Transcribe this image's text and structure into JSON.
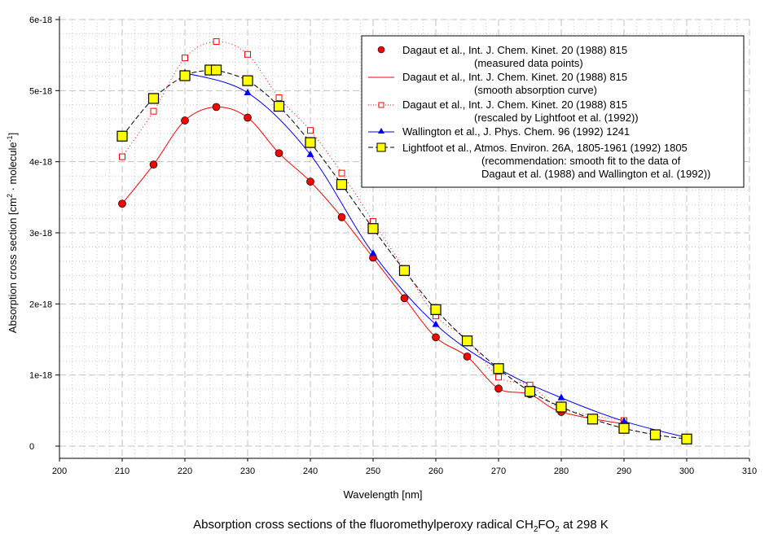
{
  "chart_data": {
    "type": "line",
    "title": {
      "pre": "Absorption cross sections of the fluoromethylperoxy radical CH",
      "sub1": "2",
      "mid": "FO",
      "sub2": "2",
      "post": " at 298 K"
    },
    "xlabel": "Wavelength [nm]",
    "ylabel": {
      "pre": "Absorption cross section [cm",
      "sup1": "2",
      "mid": " · molecule",
      "sup2": "-1",
      "post": "]"
    },
    "xlim": [
      200,
      310
    ],
    "ylim": [
      -1.7e-19,
      6e-18
    ],
    "grid": true,
    "legend_position": "top-right",
    "x_ticks": [
      "200",
      "210",
      "220",
      "230",
      "240",
      "250",
      "260",
      "270",
      "280",
      "290",
      "300",
      "310"
    ],
    "y_ticks": [
      "0",
      "1e-18",
      "2e-18",
      "3e-18",
      "4e-18",
      "5e-18",
      "6e-18"
    ],
    "series": [
      {
        "name": "Dagaut et al., Int. J. Chem. Kinet. 20 (1988) 815",
        "name2": "(measured data points)",
        "style": "markers",
        "marker": "circle",
        "color": "#ff0000",
        "x": [
          210,
          215,
          220,
          225,
          230,
          235,
          240,
          245,
          250,
          255,
          260,
          265,
          270,
          275,
          280,
          290
        ],
        "y": [
          3.41e-18,
          3.96e-18,
          4.58e-18,
          4.77e-18,
          4.62e-18,
          4.12e-18,
          3.72e-18,
          3.22e-18,
          2.65e-18,
          2.08e-18,
          1.53e-18,
          1.26e-18,
          8.1e-19,
          7.3e-19,
          4.8e-19,
          3.1e-19
        ]
      },
      {
        "name": "Dagaut et al., Int. J. Chem. Kinet. 20 (1988) 815",
        "name2": "(smooth absorption curve)",
        "style": "solid",
        "color": "#ff0000",
        "x": [
          210,
          215,
          220,
          225,
          230,
          235,
          240,
          245,
          250,
          255,
          260,
          265,
          270,
          275,
          280,
          290
        ],
        "y": [
          3.41e-18,
          3.96e-18,
          4.58e-18,
          4.77e-18,
          4.62e-18,
          4.12e-18,
          3.72e-18,
          3.22e-18,
          2.65e-18,
          2.08e-18,
          1.53e-18,
          1.26e-18,
          8.1e-19,
          7.3e-19,
          4.8e-19,
          3.1e-19
        ]
      },
      {
        "name": "Dagaut et al., Int. J. Chem. Kinet. 20 (1988) 815",
        "name2": "(rescaled by Lightfoot et al. (1992))",
        "style": "dotted",
        "marker": "open-square",
        "color": "#ff0000",
        "x": [
          210,
          215,
          220,
          225,
          230,
          235,
          240,
          245,
          250,
          255,
          260,
          265,
          270,
          275,
          280,
          290
        ],
        "y": [
          4.07e-18,
          4.71e-18,
          5.46e-18,
          5.69e-18,
          5.51e-18,
          4.9e-18,
          4.44e-18,
          3.84e-18,
          3.16e-18,
          2.49e-18,
          1.83e-18,
          1.5e-18,
          9.7e-19,
          8.6e-19,
          5.3e-19,
          3.6e-19
        ]
      },
      {
        "name": "Wallington et al., J. Phys. Chem. 96 (1992) 1241",
        "style": "solid",
        "marker": "triangle",
        "color": "#0000ff",
        "x": [
          220,
          230,
          240,
          250,
          260,
          270,
          280,
          290,
          300
        ],
        "y": [
          5.25e-18,
          4.97e-18,
          4.1e-18,
          2.71e-18,
          1.71e-18,
          1.09e-18,
          6.8e-19,
          3.5e-19,
          1.2e-19
        ]
      },
      {
        "name": "Lightfoot et al., Atmos. Environ. 26A, 1805-1961 (1992) 1805",
        "name2": "(recommendation: smooth fit to the data of",
        "name3": "Dagaut et al. (1988) and Wallington et al. (1992))",
        "style": "dashed",
        "marker": "filled-square",
        "color": "#000000",
        "marker_fill": "#ffff00",
        "x": [
          210,
          215,
          220,
          224,
          225,
          230,
          235,
          240,
          245,
          250,
          255,
          260,
          265,
          270,
          275,
          280,
          285,
          290,
          295,
          300
        ],
        "y": [
          4.36e-18,
          4.89e-18,
          5.21e-18,
          5.29e-18,
          5.29e-18,
          5.14e-18,
          4.78e-18,
          4.27e-18,
          3.68e-18,
          3.06e-18,
          2.47e-18,
          1.92e-18,
          1.48e-18,
          1.09e-18,
          7.7e-19,
          5.5e-19,
          3.8e-19,
          2.5e-19,
          1.6e-19,
          1e-19
        ]
      }
    ]
  }
}
